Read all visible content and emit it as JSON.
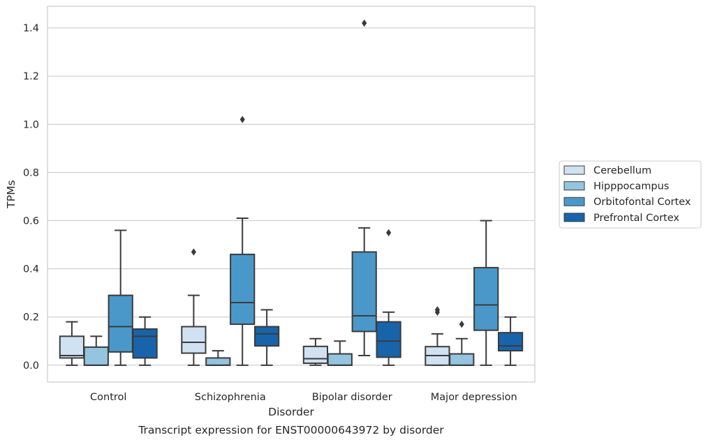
{
  "chart_data": {
    "type": "box",
    "caption": "Transcript expression for ENST00000643972 by disorder",
    "xlabel": "Disorder",
    "ylabel": "TPMs",
    "ylim": [
      -0.07,
      1.49
    ],
    "yticks": [
      "0.0",
      "0.2",
      "0.4",
      "0.6",
      "0.8",
      "1.0",
      "1.2",
      "1.4"
    ],
    "grid": "horizontal",
    "legend_position": "right-center",
    "categories": [
      "Control",
      "Schizophrenia",
      "Bipolar disorder",
      "Major depression"
    ],
    "series": [
      {
        "name": "Cerebellum",
        "color": "#d0e1f2",
        "boxes": [
          {
            "whislo": 0.0,
            "q1": 0.03,
            "med": 0.04,
            "q3": 0.12,
            "whishi": 0.18,
            "fliers": []
          },
          {
            "whislo": 0.0,
            "q1": 0.05,
            "med": 0.095,
            "q3": 0.16,
            "whishi": 0.29,
            "fliers": [
              0.47
            ]
          },
          {
            "whislo": 0.0,
            "q1": 0.008,
            "med": 0.027,
            "q3": 0.078,
            "whishi": 0.11,
            "fliers": []
          },
          {
            "whislo": 0.0,
            "q1": 0.0,
            "med": 0.04,
            "q3": 0.077,
            "whishi": 0.13,
            "fliers": [
              0.22,
              0.23
            ]
          }
        ]
      },
      {
        "name": "Hipppocampus",
        "color": "#94c4df",
        "boxes": [
          {
            "whislo": 0.0,
            "q1": 0.0,
            "med": 0.0,
            "q3": 0.075,
            "whishi": 0.12,
            "fliers": []
          },
          {
            "whislo": 0.0,
            "q1": 0.0,
            "med": 0.0,
            "q3": 0.03,
            "whishi": 0.06,
            "fliers": []
          },
          {
            "whislo": 0.0,
            "q1": 0.0,
            "med": 0.0,
            "q3": 0.047,
            "whishi": 0.1,
            "fliers": []
          },
          {
            "whislo": 0.0,
            "q1": 0.0,
            "med": 0.0,
            "q3": 0.047,
            "whishi": 0.11,
            "fliers": [
              0.17
            ]
          }
        ]
      },
      {
        "name": "Orbitofontal Cortex",
        "color": "#4a98c9",
        "boxes": [
          {
            "whislo": 0.0,
            "q1": 0.055,
            "med": 0.16,
            "q3": 0.29,
            "whishi": 0.56,
            "fliers": []
          },
          {
            "whislo": 0.0,
            "q1": 0.17,
            "med": 0.26,
            "q3": 0.46,
            "whishi": 0.61,
            "fliers": [
              1.02
            ]
          },
          {
            "whislo": 0.04,
            "q1": 0.14,
            "med": 0.205,
            "q3": 0.47,
            "whishi": 0.57,
            "fliers": [
              1.42
            ]
          },
          {
            "whislo": 0.0,
            "q1": 0.145,
            "med": 0.25,
            "q3": 0.405,
            "whishi": 0.6,
            "fliers": []
          }
        ]
      },
      {
        "name": "Prefrontal Cortex",
        "color": "#1764ab",
        "boxes": [
          {
            "whislo": 0.0,
            "q1": 0.03,
            "med": 0.12,
            "q3": 0.15,
            "whishi": 0.2,
            "fliers": []
          },
          {
            "whislo": 0.0,
            "q1": 0.08,
            "med": 0.13,
            "q3": 0.16,
            "whishi": 0.23,
            "fliers": []
          },
          {
            "whislo": 0.0,
            "q1": 0.033,
            "med": 0.1,
            "q3": 0.18,
            "whishi": 0.22,
            "fliers": [
              0.55
            ]
          },
          {
            "whislo": 0.0,
            "q1": 0.06,
            "med": 0.08,
            "q3": 0.135,
            "whishi": 0.2,
            "fliers": []
          }
        ]
      }
    ]
  }
}
